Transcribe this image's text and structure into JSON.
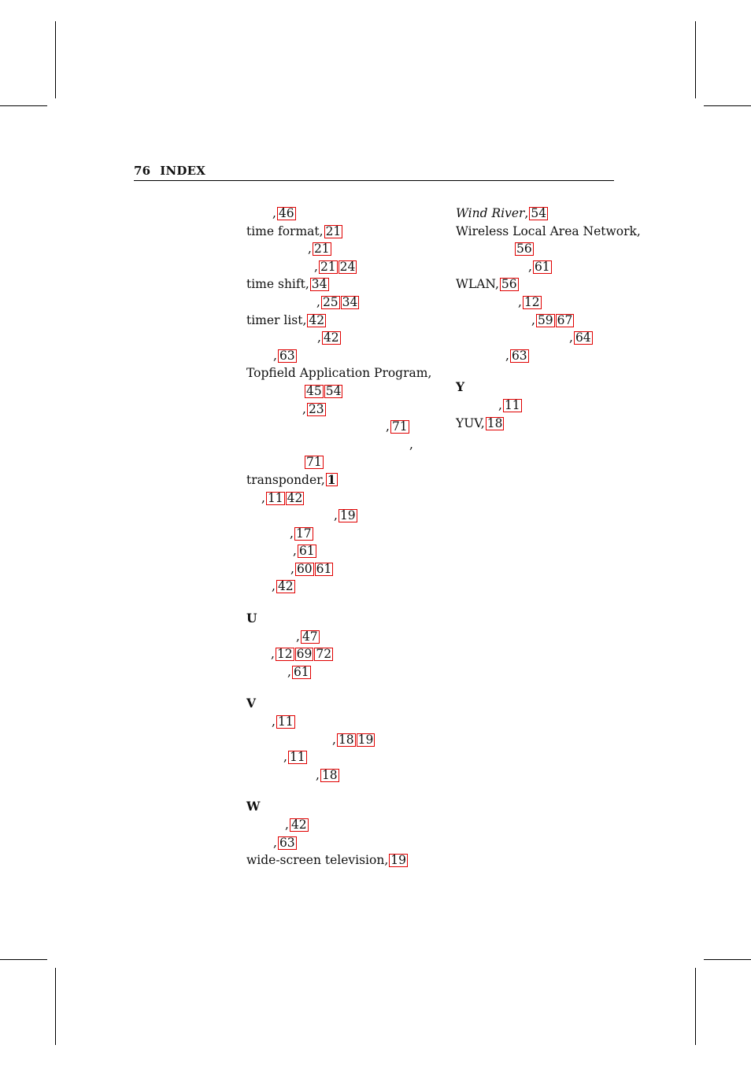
{
  "header": {
    "page_number": "76",
    "title": "INDEX"
  },
  "left_column": [
    {
      "indent": 33,
      "text": ",",
      "links": [
        "46"
      ]
    },
    {
      "indent": 0,
      "text": "time format,",
      "links": [
        "21"
      ]
    },
    {
      "indent": 78,
      "text": ",",
      "links": [
        "21"
      ]
    },
    {
      "indent": 86,
      "text": ",",
      "links": [
        "21",
        "24"
      ]
    },
    {
      "indent": 0,
      "text": "time shift,",
      "links": [
        "34"
      ]
    },
    {
      "indent": 89,
      "text": ",",
      "links": [
        "25",
        "34"
      ]
    },
    {
      "indent": 0,
      "text": "timer list,",
      "links": [
        "42"
      ]
    },
    {
      "indent": 90,
      "text": ",",
      "links": [
        "42"
      ]
    },
    {
      "indent": 34,
      "text": ",",
      "links": [
        "63"
      ]
    },
    {
      "indent": 0,
      "text": "Topfield Application Program,",
      "links": []
    },
    {
      "indent": 73,
      "text": "",
      "links": [
        "45",
        "54"
      ]
    },
    {
      "indent": 71,
      "text": ",",
      "links": [
        "23"
      ]
    },
    {
      "indent": 177,
      "text": ",",
      "links": [
        "71"
      ]
    },
    {
      "indent": 207,
      "text": ",",
      "links": []
    },
    {
      "indent": 73,
      "text": "",
      "links": [
        "71"
      ]
    },
    {
      "indent": 0,
      "text": "transponder,",
      "links": [
        "1"
      ],
      "bold_links": true
    },
    {
      "indent": 19,
      "text": ",",
      "links": [
        "11",
        "42"
      ]
    },
    {
      "indent": 111,
      "text": ",",
      "links": [
        "19"
      ]
    },
    {
      "indent": 55,
      "text": ",",
      "links": [
        "17"
      ]
    },
    {
      "indent": 59,
      "text": ",",
      "links": [
        "61"
      ]
    },
    {
      "indent": 56,
      "text": ",",
      "links": [
        "60",
        "61"
      ]
    },
    {
      "indent": 32,
      "text": ",",
      "links": [
        "42"
      ]
    },
    {
      "blank": true
    },
    {
      "letter": "U"
    },
    {
      "indent": 63,
      "text": ",",
      "links": [
        "47"
      ]
    },
    {
      "indent": 31,
      "text": ",",
      "links": [
        "12",
        "69",
        "72"
      ]
    },
    {
      "indent": 52,
      "text": ",",
      "links": [
        "61"
      ]
    },
    {
      "blank": true
    },
    {
      "letter": "V"
    },
    {
      "indent": 32,
      "text": ",",
      "links": [
        "11"
      ]
    },
    {
      "indent": 109,
      "text": ",",
      "links": [
        "18",
        "19"
      ]
    },
    {
      "indent": 47,
      "text": ",",
      "links": [
        "11"
      ]
    },
    {
      "indent": 88,
      "text": ",",
      "links": [
        "18"
      ]
    },
    {
      "blank": true
    },
    {
      "letter": "W"
    },
    {
      "indent": 49,
      "text": ",",
      "links": [
        "42"
      ]
    },
    {
      "indent": 34,
      "text": ",",
      "links": [
        "63"
      ]
    },
    {
      "indent": 0,
      "text": "wide-screen television,",
      "links": [
        "19"
      ]
    }
  ],
  "right_column": [
    {
      "indent": 0,
      "text": "Wind River",
      "italic": true,
      "after": ",",
      "links": [
        "54"
      ]
    },
    {
      "indent": 0,
      "text": "Wireless Local Area Network,",
      "links": []
    },
    {
      "indent": 74,
      "text": "",
      "links": [
        "56"
      ]
    },
    {
      "indent": 92,
      "text": ",",
      "links": [
        "61"
      ]
    },
    {
      "indent": 0,
      "text": "WLAN,",
      "links": [
        "56"
      ]
    },
    {
      "indent": 79,
      "text": ",",
      "links": [
        "12"
      ]
    },
    {
      "indent": 96,
      "text": ",",
      "links": [
        "59",
        "67"
      ]
    },
    {
      "indent": 144,
      "text": ",",
      "links": [
        "64"
      ]
    },
    {
      "indent": 63,
      "text": ",",
      "links": [
        "63"
      ]
    },
    {
      "blank": true
    },
    {
      "letter": "Y"
    },
    {
      "indent": 54,
      "text": ",",
      "links": [
        "11"
      ]
    },
    {
      "indent": 0,
      "text": "YUV,",
      "links": [
        "18"
      ]
    }
  ]
}
